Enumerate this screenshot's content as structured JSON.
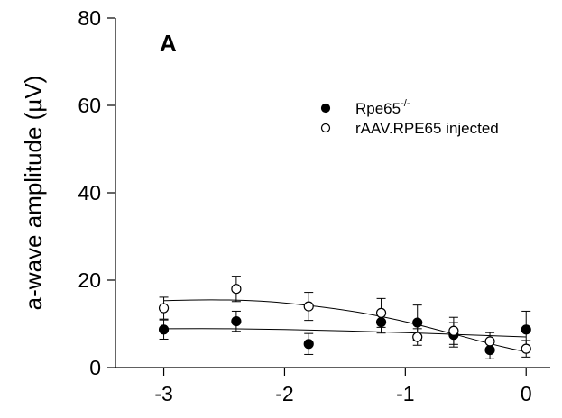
{
  "chart_data": {
    "type": "scatter",
    "panel_label": "A",
    "ylabel": "a-wave amplitude (µV)",
    "xlabel": "",
    "xlim": [
      -3.4,
      0.2
    ],
    "ylim": [
      0,
      80
    ],
    "x_ticks": [
      -3,
      -2,
      -1,
      0
    ],
    "x_tick_labels": [
      "-3",
      "-2",
      "-1",
      "0"
    ],
    "y_ticks": [
      0,
      20,
      40,
      60,
      80
    ],
    "y_tick_labels": [
      "0",
      "20",
      "40",
      "60",
      "80"
    ],
    "grid": false,
    "legend_position": "upper-right",
    "series": [
      {
        "name": "Rpe65",
        "name_superscript": "-/-",
        "marker": "filled-circle",
        "color": "#000000",
        "points": [
          {
            "x": -3.0,
            "y": 8.7,
            "err": 2.2
          },
          {
            "x": -2.4,
            "y": 10.6,
            "err": 2.3
          },
          {
            "x": -1.8,
            "y": 5.4,
            "err": 2.4
          },
          {
            "x": -1.2,
            "y": 10.4,
            "err": 2.5
          },
          {
            "x": -0.9,
            "y": 10.3,
            "err": 4.0
          },
          {
            "x": -0.6,
            "y": 7.5,
            "err": 2.8
          },
          {
            "x": -0.3,
            "y": 4.0,
            "err": 2.0
          },
          {
            "x": 0.0,
            "y": 8.7,
            "err": 4.2
          }
        ],
        "fit": {
          "x": [
            -3.0,
            -2.5,
            -2.0,
            -1.5,
            -1.0,
            -0.5,
            0.0
          ],
          "y": [
            8.9,
            8.9,
            8.7,
            8.4,
            8.0,
            7.5,
            7.0
          ]
        }
      },
      {
        "name": "rAAV.RPE65 injected",
        "marker": "open-circle",
        "color": "#000000",
        "points": [
          {
            "x": -3.0,
            "y": 13.6,
            "err": 2.5
          },
          {
            "x": -2.4,
            "y": 18.0,
            "err": 2.9
          },
          {
            "x": -1.8,
            "y": 14.0,
            "err": 3.2
          },
          {
            "x": -1.2,
            "y": 12.5,
            "err": 3.3
          },
          {
            "x": -0.9,
            "y": 7.0,
            "err": 1.9
          },
          {
            "x": -0.6,
            "y": 8.4,
            "err": 3.1
          },
          {
            "x": -0.3,
            "y": 6.0,
            "err": 2.0
          },
          {
            "x": 0.0,
            "y": 4.3,
            "err": 1.9
          }
        ],
        "fit": {
          "x": [
            -3.0,
            -2.6,
            -2.2,
            -1.8,
            -1.4,
            -1.0,
            -0.7,
            -0.4,
            -0.2,
            0.0
          ],
          "y": [
            15.3,
            15.5,
            15.2,
            14.2,
            12.7,
            10.5,
            8.4,
            6.2,
            4.8,
            3.6
          ]
        }
      }
    ]
  }
}
